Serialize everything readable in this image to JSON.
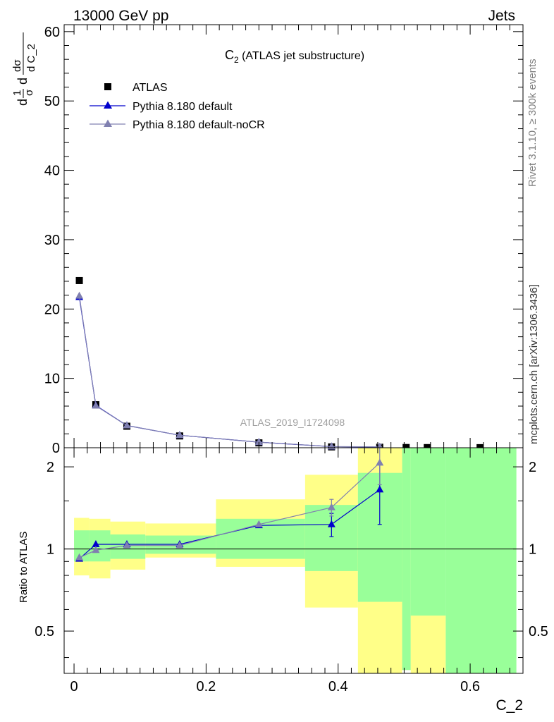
{
  "header": {
    "left": "13000 GeV pp",
    "right": "Jets"
  },
  "side_labels": {
    "rivet": "Rivet 3.1.10, ≥ 300k events",
    "source": "mcplots.cern.ch [arXiv:1306.3436]"
  },
  "colors": {
    "atlas": "#000000",
    "pythia_default": "#0000cc",
    "pythia_nocr": "#8080b0",
    "band_green": "#99ff99",
    "band_yellow": "#ffff88",
    "watermark": "#a0a0a0"
  },
  "chart_data": [
    {
      "type": "scatter",
      "title": "C_2 (ATLAS jet substructure)",
      "title_main": "C",
      "title_sub": "2",
      "title_rest": " (ATLAS jet substructure)",
      "watermark": "ATLAS_2019_I1724098",
      "ylabel": "1/σ dσ/d C_2",
      "xlim": [
        -0.015,
        0.68
      ],
      "ylim": [
        0,
        61
      ],
      "yticks": [
        0,
        10,
        20,
        30,
        40,
        50,
        60
      ],
      "legend_position": "top-left",
      "series": [
        {
          "name": "ATLAS",
          "marker": "square",
          "color": "#000000",
          "x": [
            0.008,
            0.033,
            0.08,
            0.16,
            0.28,
            0.39,
            0.463,
            0.503,
            0.535,
            0.615
          ],
          "y": [
            24.1,
            6.2,
            3.1,
            1.7,
            0.7,
            0.12,
            0.07,
            0.03,
            0.02,
            0.01
          ]
        },
        {
          "name": "Pythia 8.180 default",
          "marker": "triangle",
          "color": "#0000cc",
          "x": [
            0.008,
            0.033,
            0.08,
            0.16,
            0.28,
            0.39,
            0.463
          ],
          "y": [
            21.7,
            6.1,
            3.2,
            1.8,
            0.8,
            0.16,
            0.1
          ]
        },
        {
          "name": "Pythia 8.180 default-noCR",
          "marker": "triangle",
          "color": "#8080b0",
          "x": [
            0.008,
            0.033,
            0.08,
            0.16,
            0.28,
            0.39,
            0.463
          ],
          "y": [
            21.9,
            6.05,
            3.2,
            1.8,
            0.8,
            0.17,
            0.12
          ]
        }
      ]
    },
    {
      "type": "scatter",
      "ylabel": "Ratio to ATLAS",
      "xlabel": "C_2",
      "xlim": [
        -0.015,
        0.68
      ],
      "ylim": [
        0.35,
        2.35
      ],
      "yticks": [
        0.5,
        1,
        2
      ],
      "ytick_labels": [
        "0.5",
        "1",
        "2"
      ],
      "xticks": [
        0,
        0.2,
        0.4,
        0.6
      ],
      "xtick_labels": [
        "0",
        "0.2",
        "0.4",
        "0.6"
      ],
      "reference_line": 1,
      "uncertainty_bands": [
        {
          "x0": 0.0,
          "x1": 0.023,
          "yellow": [
            0.8,
            1.3
          ],
          "green": [
            0.9,
            1.17
          ]
        },
        {
          "x0": 0.023,
          "x1": 0.055,
          "yellow": [
            0.78,
            1.29
          ],
          "green": [
            0.9,
            1.17
          ]
        },
        {
          "x0": 0.055,
          "x1": 0.108,
          "yellow": [
            0.84,
            1.26
          ],
          "green": [
            0.92,
            1.13
          ]
        },
        {
          "x0": 0.108,
          "x1": 0.215,
          "yellow": [
            0.93,
            1.24
          ],
          "green": [
            0.96,
            1.12
          ]
        },
        {
          "x0": 0.215,
          "x1": 0.35,
          "yellow": [
            0.86,
            1.52
          ],
          "green": [
            0.92,
            1.29
          ]
        },
        {
          "x0": 0.35,
          "x1": 0.43,
          "yellow": [
            0.61,
            1.87
          ],
          "green": [
            0.83,
            1.45
          ]
        },
        {
          "x0": 0.43,
          "x1": 0.497,
          "yellow": [
            0.35,
            2.35
          ],
          "green": [
            0.64,
            1.9
          ]
        },
        {
          "x0": 0.497,
          "x1": 0.51,
          "yellow": [
            0.36,
            2.35
          ],
          "green": [
            0.36,
            2.35
          ]
        },
        {
          "x0": 0.51,
          "x1": 0.563,
          "yellow": [
            0.35,
            0.57
          ],
          "green": [
            0.57,
            2.35
          ]
        },
        {
          "x0": 0.563,
          "x1": 0.67,
          "yellow": [
            0.35,
            0.35
          ],
          "green": [
            0.35,
            2.35
          ]
        }
      ],
      "series": [
        {
          "name": "Pythia 8.180 default",
          "color": "#0000cc",
          "x": [
            0.008,
            0.033,
            0.08,
            0.16,
            0.28,
            0.39,
            0.463
          ],
          "y": [
            0.92,
            1.04,
            1.04,
            1.04,
            1.22,
            1.23,
            1.65
          ],
          "err": [
            0.01,
            0.01,
            0.01,
            0.01,
            0.02,
            0.12,
            0.42
          ]
        },
        {
          "name": "Pythia 8.180 default-noCR",
          "color": "#8080b0",
          "x": [
            0.008,
            0.033,
            0.08,
            0.16,
            0.28,
            0.39,
            0.463
          ],
          "y": [
            0.93,
            0.99,
            1.03,
            1.03,
            1.23,
            1.42,
            2.07
          ],
          "err": [
            0.01,
            0.01,
            0.01,
            0.01,
            0.02,
            0.1,
            0.35
          ]
        }
      ]
    }
  ]
}
